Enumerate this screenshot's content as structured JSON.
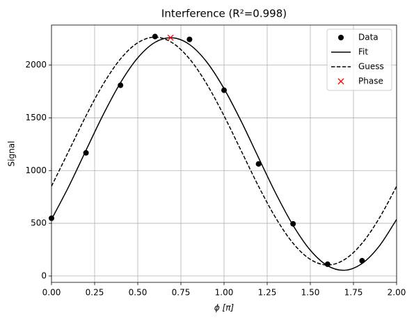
{
  "chart_data": {
    "type": "line",
    "title": "Interference (R²=0.998)",
    "x_label": "ϕ [π]",
    "y_label": "Signal",
    "xlim": [
      0,
      2
    ],
    "ylim": [
      -60,
      2380
    ],
    "xticks": [
      {
        "value": 0,
        "label": "0.00"
      },
      {
        "value": 0.25,
        "label": "0.25"
      },
      {
        "value": 0.5,
        "label": "0.50"
      },
      {
        "value": 0.75,
        "label": "0.75"
      },
      {
        "value": 1,
        "label": "1.00"
      },
      {
        "value": 1.25,
        "label": "1.25"
      },
      {
        "value": 1.5,
        "label": "1.50"
      },
      {
        "value": 1.75,
        "label": "1.75"
      },
      {
        "value": 2,
        "label": "2.00"
      }
    ],
    "yticks": [
      0,
      500,
      1000,
      1500,
      2000
    ],
    "grid": true,
    "legend": "upper right",
    "series": [
      {
        "name": "Data",
        "color": "#000000",
        "marker": "o",
        "x": [
          0,
          0.2,
          0.4,
          0.6,
          0.8,
          1.0,
          1.2,
          1.4,
          1.6,
          1.8
        ],
        "values": [
          548,
          1168,
          1809,
          2271,
          2244,
          1762,
          1063,
          495,
          112,
          145
        ]
      },
      {
        "name": "Fit",
        "color": "#000000",
        "linestyle": "solid",
        "x": [
          0,
          0.1,
          0.2,
          0.3,
          0.4,
          0.5,
          0.6,
          0.7,
          0.8,
          0.9,
          1.0,
          1.1,
          1.2,
          1.3,
          1.4,
          1.5,
          1.6,
          1.7,
          1.8,
          1.9,
          2.0
        ],
        "values": [
          537,
          849,
          1192,
          1531,
          1833,
          2069,
          2216,
          2259,
          2195,
          2029,
          1777,
          1465,
          1122,
          783,
          481,
          245,
          98,
          55,
          119,
          285,
          537
        ]
      },
      {
        "name": "Guess",
        "color": "#000000",
        "linestyle": "dashed",
        "x": [
          0,
          0.1,
          0.2,
          0.3,
          0.4,
          0.5,
          0.6,
          0.7,
          0.8,
          0.9,
          1.0,
          1.1,
          1.2,
          1.3,
          1.4,
          1.5,
          1.6,
          1.7,
          1.8,
          1.9,
          2.0
        ],
        "values": [
          851,
          1185,
          1519,
          1820,
          2059,
          2212,
          2265,
          2212,
          2059,
          1820,
          1519,
          1185,
          851,
          550,
          311,
          158,
          105,
          158,
          311,
          550,
          851
        ]
      },
      {
        "name": "Phase",
        "color": "#ff0000",
        "marker": "x",
        "x": [
          0.69
        ],
        "values": [
          2260
        ]
      }
    ]
  }
}
